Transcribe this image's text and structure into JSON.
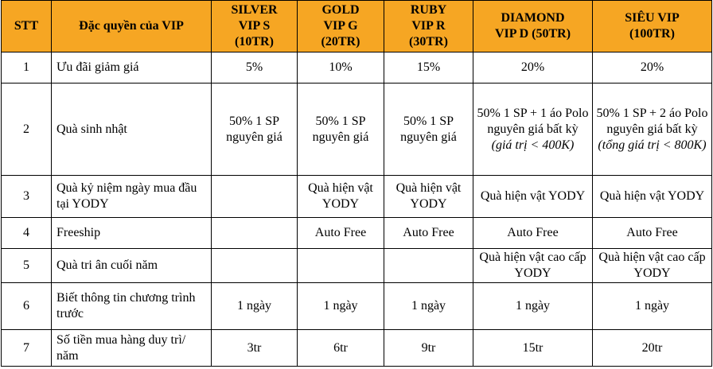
{
  "table": {
    "headers": {
      "stt": "STT",
      "perk": "Đặc quyền của VIP",
      "tiers": [
        {
          "line1": "SILVER",
          "line2": "VIP S",
          "line3": "(10TR)"
        },
        {
          "line1": "GOLD",
          "line2": "VIP G",
          "line3": "(20TR)"
        },
        {
          "line1": "RUBY",
          "line2": "VIP R",
          "line3": "(30TR)"
        },
        {
          "line1": "DIAMOND",
          "line2": "VIP D (50TR)",
          "line3": ""
        },
        {
          "line1": "SIÊU VIP",
          "line2": "(100TR)",
          "line3": ""
        }
      ]
    },
    "rows": [
      {
        "stt": "1",
        "perk": "Ưu đãi giảm giá",
        "values": [
          "5%",
          "10%",
          "15%",
          "20%",
          "20%"
        ]
      },
      {
        "stt": "2",
        "perk": "Quà sinh nhật",
        "values": [
          "50% 1 SP nguyên giá",
          "50% 1 SP nguyên giá",
          "50% 1 SP nguyên giá",
          "50% 1 SP + 1 áo Polo nguyên giá bất kỳ",
          "50% 1 SP + 2 áo Polo nguyên giá bất kỳ"
        ],
        "notes": [
          "",
          "",
          "",
          "(giá trị < 400K)",
          "(tổng giá trị < 800K)"
        ]
      },
      {
        "stt": "3",
        "perk": "Quà kỷ niệm ngày mua đầu tại YODY",
        "values": [
          "",
          "Quà hiện vật YODY",
          "Quà hiện vật YODY",
          "Quà hiện vật YODY",
          "Quà hiện vật YODY"
        ]
      },
      {
        "stt": "4",
        "perk": "Freeship",
        "values": [
          "",
          "Auto Free",
          "Auto Free",
          "Auto Free",
          "Auto Free"
        ]
      },
      {
        "stt": "5",
        "perk": "Quà tri ân cuối năm",
        "values": [
          "",
          "",
          "",
          "Quà hiện vật cao cấp YODY",
          "Quà hiện vật cao cấp YODY"
        ]
      },
      {
        "stt": "6",
        "perk": "Biết thông tin chương trình trước",
        "values": [
          "1 ngày",
          "1 ngày",
          "1 ngày",
          "1 ngày",
          "1 ngày"
        ]
      },
      {
        "stt": "7",
        "perk": "Số tiền mua hàng duy trì/ năm",
        "values": [
          "3tr",
          "6tr",
          "9tr",
          "15tr",
          "20tr"
        ]
      }
    ]
  },
  "colors": {
    "header_bg": "#f6a623",
    "border": "#000000"
  }
}
